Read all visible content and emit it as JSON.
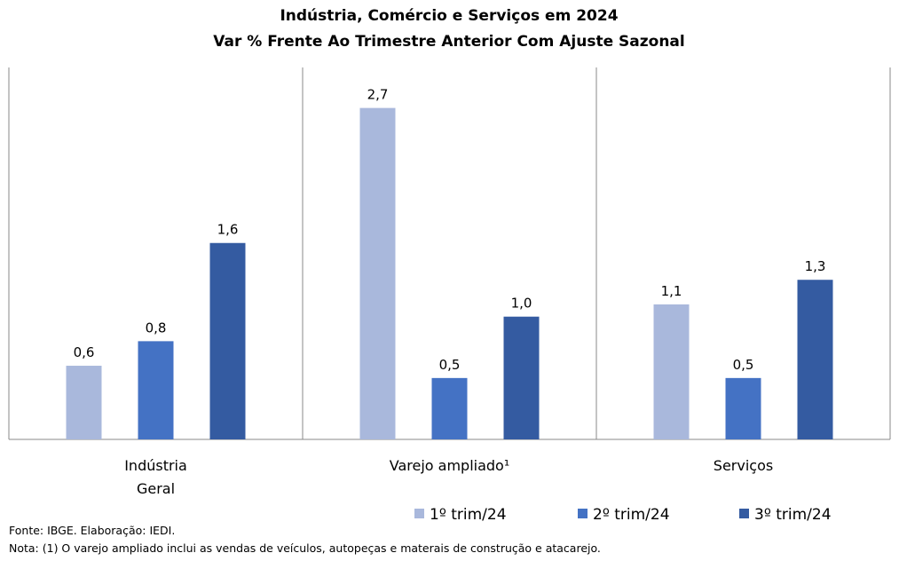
{
  "chart_data": {
    "type": "bar",
    "title": "Indústria, Comércio e Serviços em 2024",
    "subtitle": "Var % Frente Ao Trimestre Anterior Com Ajuste Sazonal",
    "categories": [
      "Indústria Geral",
      "Varejo ampliado¹",
      "Serviços"
    ],
    "series": [
      {
        "name": "1º trim/24",
        "color": "#a9b8dc",
        "values": [
          0.6,
          2.7,
          1.1
        ],
        "labels": [
          "0,6",
          "2,7",
          "1,1"
        ]
      },
      {
        "name": "2º trim/24",
        "color": "#4472c4",
        "values": [
          0.8,
          0.5,
          0.5
        ],
        "labels": [
          "0,8",
          "0,5",
          "0,5"
        ]
      },
      {
        "name": "3º trim/24",
        "color": "#345ba1",
        "values": [
          1.6,
          1.0,
          1.3
        ],
        "labels": [
          "1,6",
          "1,0",
          "1,3"
        ]
      }
    ],
    "ylim": [
      0,
      3.0
    ],
    "grid": false,
    "legend_position": "bottom-right"
  },
  "footer": {
    "source": "Fonte: IBGE. Elaboração: IEDI.",
    "note": "Nota: (1) O varejo ampliado inclui as vendas de veículos, autopeças e materais de construção e atacarejo."
  }
}
